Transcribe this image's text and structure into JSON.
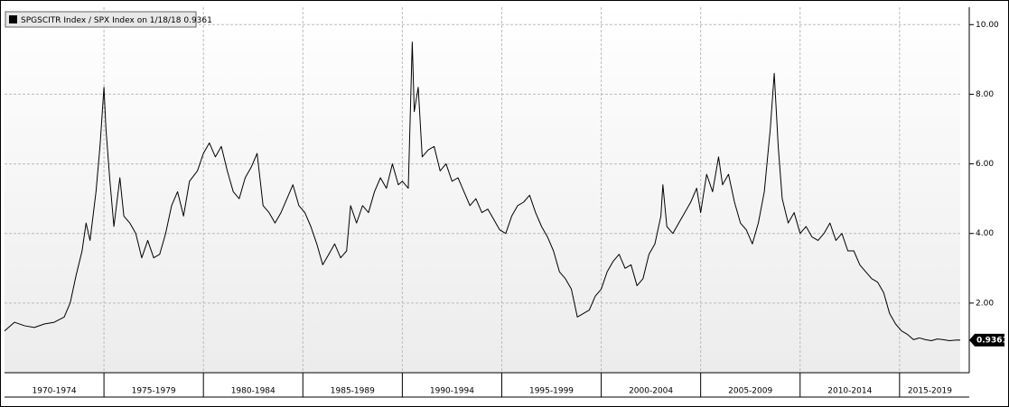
{
  "chart_data": {
    "type": "line",
    "xlim": [
      1970,
      2018.05
    ],
    "ylim": [
      0,
      10.5
    ],
    "yticks": [
      {
        "value": 2,
        "label": "2.00"
      },
      {
        "value": 4,
        "label": "4.00"
      },
      {
        "value": 6,
        "label": "6.00"
      },
      {
        "value": 8,
        "label": "8.00"
      },
      {
        "value": 10,
        "label": "10.00"
      }
    ],
    "grid": true,
    "periods": [
      {
        "label": "1970-1974",
        "start": 1970,
        "end": 1975
      },
      {
        "label": "1975-1979",
        "start": 1975,
        "end": 1980
      },
      {
        "label": "1980-1984",
        "start": 1980,
        "end": 1985
      },
      {
        "label": "1985-1989",
        "start": 1985,
        "end": 1990
      },
      {
        "label": "1990-1994",
        "start": 1990,
        "end": 1995
      },
      {
        "label": "1995-1999",
        "start": 1995,
        "end": 2000
      },
      {
        "label": "2000-2004",
        "start": 2000,
        "end": 2005
      },
      {
        "label": "2005-2009",
        "start": 2005,
        "end": 2010
      },
      {
        "label": "2010-2014",
        "start": 2010,
        "end": 2015
      },
      {
        "label": "2015-2019",
        "start": 2015,
        "end": 2020
      }
    ],
    "x": [
      1970.0,
      1970.5,
      1971,
      1971.5,
      1972,
      1972.5,
      1973,
      1973.3,
      1973.6,
      1973.9,
      1974.1,
      1974.3,
      1974.6,
      1974.8,
      1975.0,
      1975.1,
      1975.3,
      1975.5,
      1975.8,
      1976.0,
      1976.3,
      1976.6,
      1976.9,
      1977.2,
      1977.5,
      1977.8,
      1978.1,
      1978.4,
      1978.7,
      1979.0,
      1979.3,
      1979.7,
      1980.0,
      1980.3,
      1980.6,
      1980.9,
      1981.2,
      1981.5,
      1981.8,
      1982.1,
      1982.4,
      1982.7,
      1983.0,
      1983.3,
      1983.6,
      1983.9,
      1984.2,
      1984.5,
      1984.8,
      1985.1,
      1985.4,
      1985.7,
      1986.0,
      1986.3,
      1986.6,
      1986.9,
      1987.2,
      1987.4,
      1987.7,
      1988.0,
      1988.3,
      1988.6,
      1988.9,
      1989.2,
      1989.5,
      1989.8,
      1990.0,
      1990.3,
      1990.5,
      1990.6,
      1990.8,
      1991.0,
      1991.3,
      1991.6,
      1991.9,
      1992.2,
      1992.5,
      1992.8,
      1993.1,
      1993.4,
      1993.7,
      1994.0,
      1994.3,
      1994.6,
      1994.9,
      1995.2,
      1995.5,
      1995.8,
      1996.1,
      1996.4,
      1996.7,
      1997.0,
      1997.3,
      1997.6,
      1997.9,
      1998.2,
      1998.5,
      1998.8,
      1999.1,
      1999.4,
      1999.7,
      2000.0,
      2000.3,
      2000.6,
      2000.9,
      2001.2,
      2001.5,
      2001.8,
      2002.1,
      2002.4,
      2002.7,
      2003.0,
      2003.1,
      2003.3,
      2003.6,
      2003.9,
      2004.2,
      2004.5,
      2004.8,
      2005.0,
      2005.3,
      2005.6,
      2005.9,
      2006.1,
      2006.4,
      2006.7,
      2007.0,
      2007.3,
      2007.6,
      2007.9,
      2008.2,
      2008.5,
      2008.7,
      2008.9,
      2009.1,
      2009.4,
      2009.7,
      2010.0,
      2010.3,
      2010.6,
      2010.9,
      2011.2,
      2011.5,
      2011.8,
      2012.1,
      2012.4,
      2012.7,
      2013.0,
      2013.3,
      2013.6,
      2013.9,
      2014.2,
      2014.5,
      2014.8,
      2015.1,
      2015.4,
      2015.7,
      2016.0,
      2016.3,
      2016.6,
      2016.9,
      2017.2,
      2017.5,
      2017.9,
      2018.05
    ],
    "series": [
      {
        "name": "SPGSCITR Index / SPX Index on 1/18/18",
        "color": "#000000",
        "values": [
          1.2,
          1.45,
          1.35,
          1.3,
          1.4,
          1.45,
          1.6,
          2.0,
          2.8,
          3.5,
          4.3,
          3.8,
          5.2,
          6.5,
          8.2,
          7.0,
          5.5,
          4.2,
          5.6,
          4.5,
          4.3,
          4.0,
          3.3,
          3.8,
          3.3,
          3.4,
          4.0,
          4.8,
          5.2,
          4.5,
          5.5,
          5.8,
          6.3,
          6.6,
          6.2,
          6.5,
          5.8,
          5.2,
          5.0,
          5.6,
          5.9,
          6.3,
          4.8,
          4.6,
          4.3,
          4.6,
          5.0,
          5.4,
          4.8,
          4.6,
          4.2,
          3.7,
          3.1,
          3.4,
          3.7,
          3.3,
          3.5,
          4.8,
          4.3,
          4.8,
          4.6,
          5.2,
          5.6,
          5.3,
          6.0,
          5.4,
          5.5,
          5.3,
          9.5,
          7.5,
          8.2,
          6.2,
          6.4,
          6.5,
          5.8,
          6.0,
          5.5,
          5.6,
          5.2,
          4.8,
          5.0,
          4.6,
          4.7,
          4.4,
          4.1,
          4.0,
          4.5,
          4.8,
          4.9,
          5.1,
          4.6,
          4.2,
          3.9,
          3.5,
          2.9,
          2.7,
          2.4,
          1.6,
          1.7,
          1.8,
          2.2,
          2.4,
          2.9,
          3.2,
          3.4,
          3.0,
          3.1,
          2.5,
          2.7,
          3.4,
          3.7,
          4.5,
          5.4,
          4.2,
          4.0,
          4.3,
          4.6,
          4.9,
          5.3,
          4.6,
          5.7,
          5.2,
          6.2,
          5.4,
          5.7,
          4.9,
          4.3,
          4.1,
          3.7,
          4.3,
          5.2,
          7.0,
          8.6,
          6.5,
          5.0,
          4.3,
          4.6,
          4.0,
          4.2,
          3.9,
          3.8,
          4.0,
          4.3,
          3.8,
          4.0,
          3.5,
          3.5,
          3.1,
          2.9,
          2.7,
          2.6,
          2.3,
          1.7,
          1.4,
          1.2,
          1.1,
          0.95,
          1.0,
          0.95,
          0.92,
          0.97,
          0.95,
          0.92,
          0.94,
          0.9361
        ]
      }
    ]
  }
}
